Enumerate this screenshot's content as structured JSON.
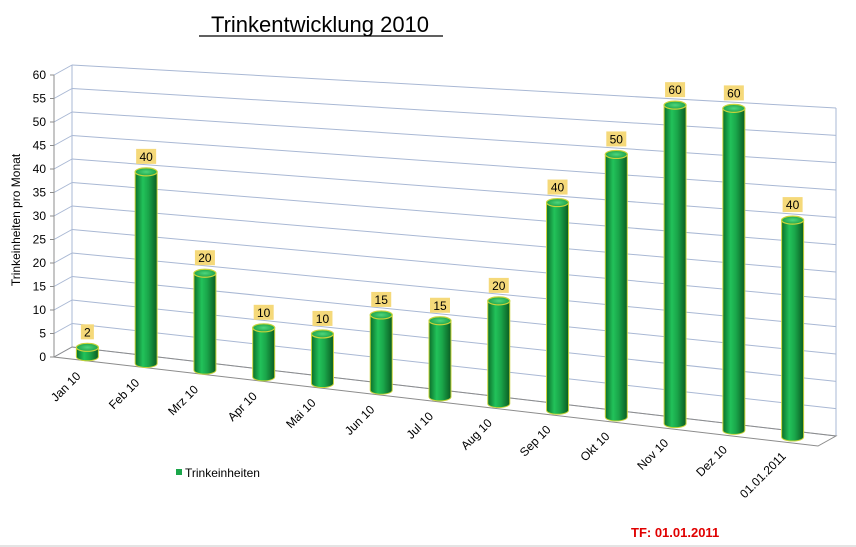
{
  "chart_data": {
    "type": "bar",
    "title": "Trinkentwicklung 2010",
    "ylabel": "Trinkeinheiten  pro Monat",
    "xlabel": "",
    "ylim": [
      0,
      60
    ],
    "yticks": [
      0,
      5,
      10,
      15,
      20,
      25,
      30,
      35,
      40,
      45,
      50,
      55,
      60
    ],
    "categories": [
      "Jan 10",
      "Feb 10",
      "Mrz 10",
      "Apr 10",
      "Mai 10",
      "Jun 10",
      "Jul 10",
      "Aug 10",
      "Sep 10",
      "Okt 10",
      "Nov 10",
      "Dez 10",
      "01.01.2011"
    ],
    "series": [
      {
        "name": "Trinkeinheiten",
        "values": [
          2,
          40,
          20,
          10,
          10,
          15,
          15,
          20,
          40,
          50,
          60,
          60,
          40
        ],
        "data_labels": [
          "2",
          "40",
          "20",
          "10",
          "10",
          "15",
          "15",
          "20",
          "40",
          "50",
          "60",
          "60",
          "40"
        ]
      }
    ],
    "legend_position": "bottom-left",
    "grid": true,
    "bar_color": "#1aa64a",
    "label_bg_color": "#f5d97a"
  },
  "footer": {
    "text": "TF: 01.01.2011",
    "color": "#e00000"
  }
}
